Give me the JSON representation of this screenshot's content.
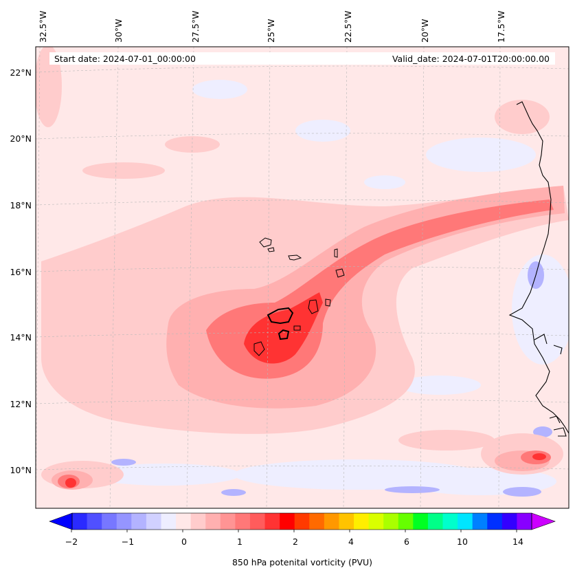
{
  "header": {
    "start_date": "Start date: 2024-07-01_00:00:00",
    "valid_date": "Valid_date: 2024-07-01T20:00:00.00"
  },
  "axes": {
    "lon_labels": [
      "32.5°W",
      "30°W",
      "27.5°W",
      "25°W",
      "22.5°W",
      "20°W",
      "17.5°W"
    ],
    "lat_labels": [
      "22°N",
      "20°N",
      "18°N",
      "16°N",
      "14°N",
      "12°N",
      "10°N"
    ]
  },
  "colorbar": {
    "tick_labels": [
      "−2",
      "−1",
      "0",
      "1",
      "2",
      "4",
      "6",
      "10",
      "14"
    ],
    "title": "850 hPa potenital vorticity (PVU)",
    "colors": [
      "#0000ff",
      "#2a2aff",
      "#5050ff",
      "#7777ff",
      "#9595ff",
      "#b3b3ff",
      "#d1d1ff",
      "#eeeeff",
      "#ffe8e8",
      "#ffcccc",
      "#ffb0b0",
      "#ff9494",
      "#ff7878",
      "#ff5c5c",
      "#ff3333",
      "#ff0000",
      "#ff3a00",
      "#ff6a00",
      "#ff9800",
      "#ffc300",
      "#ffee00",
      "#d9ff00",
      "#aaff00",
      "#66ff00",
      "#00ff22",
      "#00ff88",
      "#00ffcc",
      "#00e5ff",
      "#0080ff",
      "#0030ff",
      "#3300ff",
      "#8800ff",
      "#cc00ff"
    ]
  },
  "map": {
    "background_color": "#ffe8e8",
    "pv_fill_colors": {
      "weak_negative": "#eeeeff",
      "moderate_negative": "#b3b3ff",
      "low": "#ffcccc",
      "mid": "#ffb0b0",
      "high": "#ff7878",
      "core": "#ff3333"
    },
    "coast_color": "#000000",
    "grid_color": "#b8b8b8"
  }
}
